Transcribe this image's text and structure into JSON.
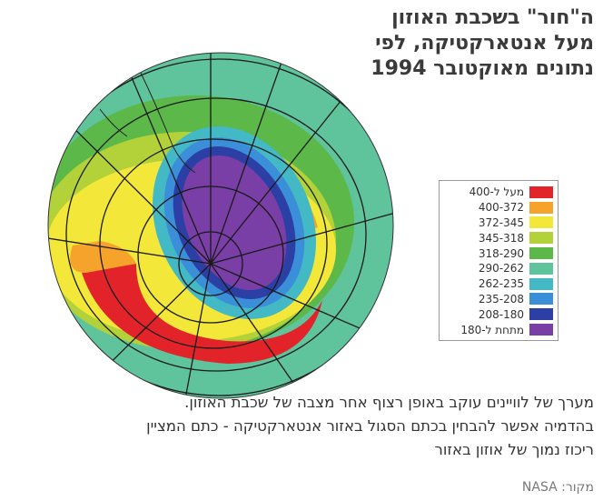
{
  "title_lines": [
    "ה\"חור\" בשכבת האוזון",
    "מעל אנטארקטיקה, לפי",
    "נתונים מאוקטובר 1994"
  ],
  "legend": {
    "items": [
      {
        "label": "מעל ל-400",
        "color": "#e3232a"
      },
      {
        "label": "400-372",
        "color": "#f5a32a"
      },
      {
        "label": "372-345",
        "color": "#f3e83a"
      },
      {
        "label": "345-318",
        "color": "#b3d23a"
      },
      {
        "label": "318-290",
        "color": "#5cb848"
      },
      {
        "label": "290-262",
        "color": "#5fc39b"
      },
      {
        "label": "262-235",
        "color": "#44b9c6"
      },
      {
        "label": "235-208",
        "color": "#3b8fd8"
      },
      {
        "label": "208-180",
        "color": "#2b3fa5"
      },
      {
        "label": "מתחת ל-180",
        "color": "#7a3fa6"
      }
    ]
  },
  "caption_lines": [
    "מערך של לוויינים עוקב באופן רצוף אחר מצבה של שכבת האוזון.",
    "בהדמיה אפשר להבחין בכתם הסגול באזור אנטארקטיקה - כתם המציין",
    "ריכוז נמוך של אוזון באזור"
  ],
  "source": "מקור: NASA"
}
